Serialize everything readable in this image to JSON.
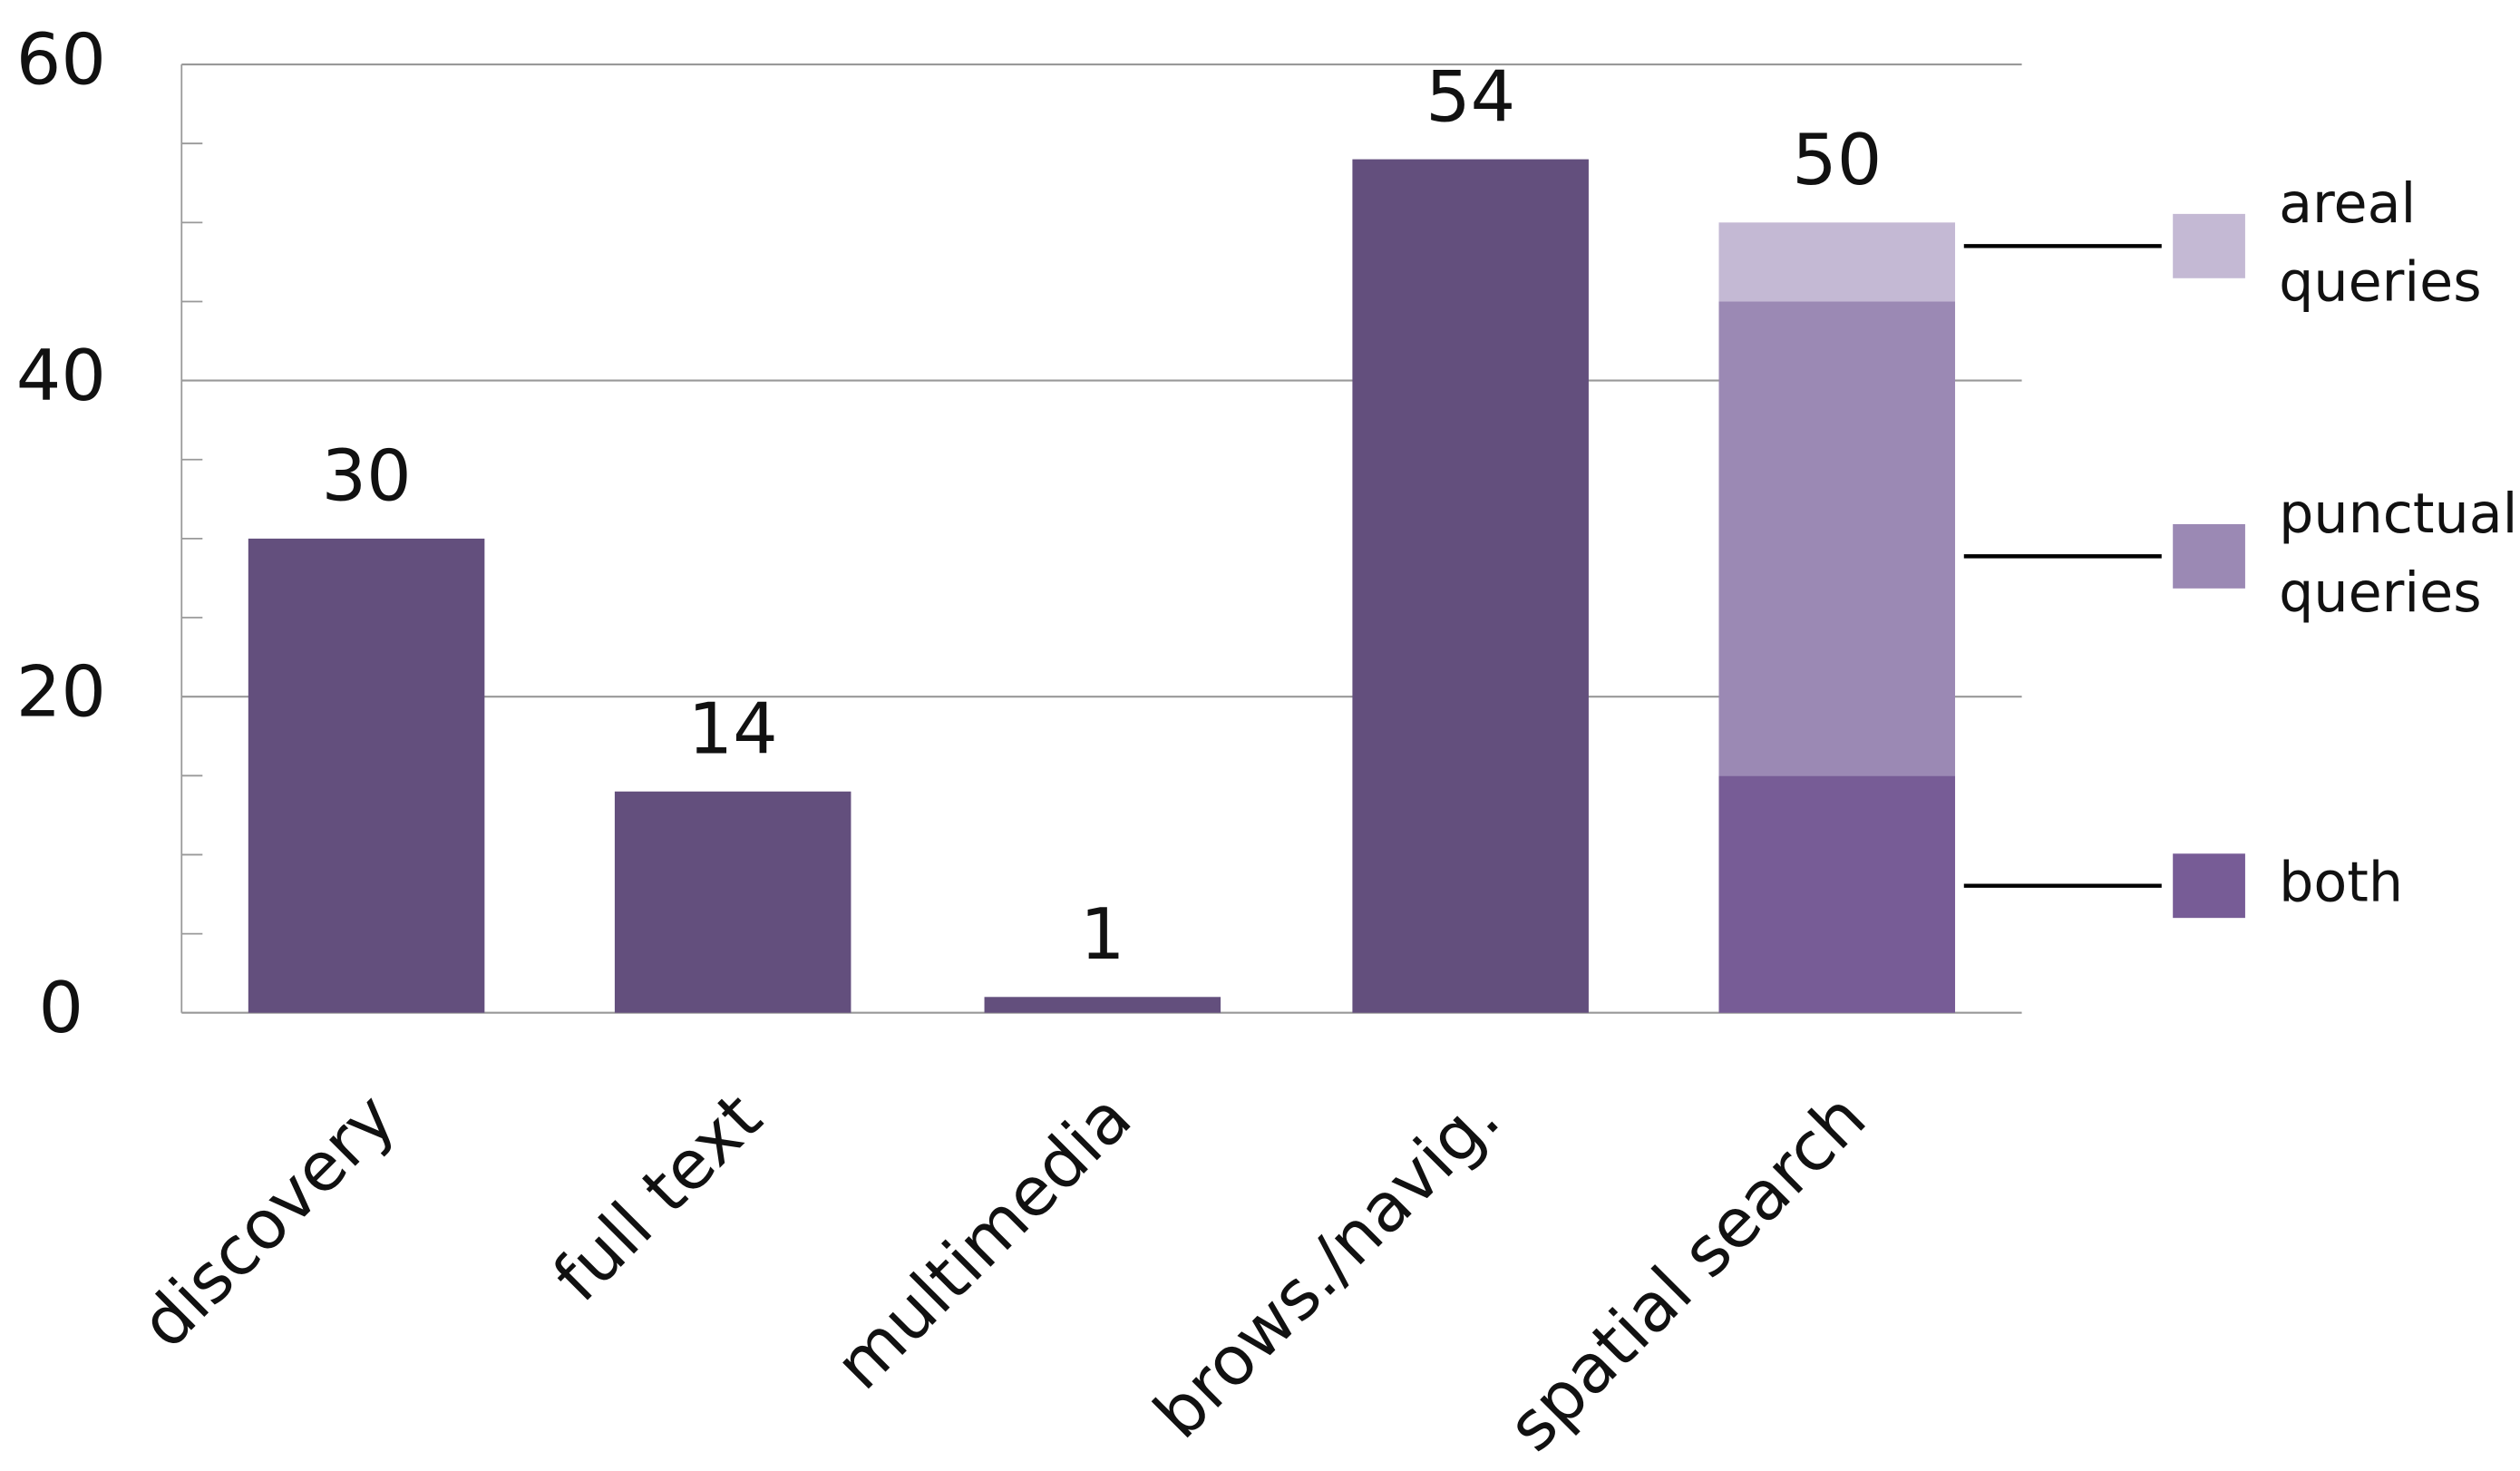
{
  "chart_data": {
    "type": "bar",
    "categories": [
      "discovery",
      "full text",
      "multimedia",
      "brows./navig.",
      "spatial search"
    ],
    "values": [
      30,
      14,
      1,
      54,
      50
    ],
    "color": "#634f7d",
    "series": [
      {
        "name": "both",
        "color": "#775c96",
        "values": [
          null,
          null,
          null,
          null,
          15
        ]
      },
      {
        "name": "punctual queries",
        "color": "#9b89b4",
        "values": [
          null,
          null,
          null,
          null,
          30
        ]
      },
      {
        "name": "areal queries",
        "color": "#c4b9d4",
        "values": [
          null,
          null,
          null,
          null,
          5
        ]
      }
    ],
    "ylim": [
      0,
      60
    ],
    "yticks": [
      0,
      20,
      40,
      60
    ],
    "minor_yticks": [
      5,
      10,
      15,
      25,
      30,
      35,
      45,
      50,
      55
    ],
    "grid": true
  }
}
